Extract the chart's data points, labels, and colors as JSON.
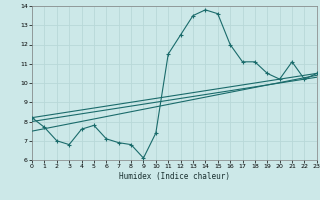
{
  "xlabel": "Humidex (Indice chaleur)",
  "background_color": "#cce8e8",
  "grid_color": "#b8d8d8",
  "line_color": "#1a6b6b",
  "xlim": [
    0,
    23
  ],
  "ylim": [
    6,
    14
  ],
  "xticks": [
    0,
    1,
    2,
    3,
    4,
    5,
    6,
    7,
    8,
    9,
    10,
    11,
    12,
    13,
    14,
    15,
    16,
    17,
    18,
    19,
    20,
    21,
    22,
    23
  ],
  "yticks": [
    6,
    7,
    8,
    9,
    10,
    11,
    12,
    13,
    14
  ],
  "series1_x": [
    0,
    1,
    2,
    3,
    4,
    5,
    6,
    7,
    8,
    9,
    10,
    11,
    12,
    13,
    14,
    15,
    16,
    17,
    18,
    19,
    20,
    21,
    22,
    23
  ],
  "series1_y": [
    8.2,
    7.7,
    7.0,
    6.8,
    7.6,
    7.8,
    7.1,
    6.9,
    6.8,
    6.1,
    7.4,
    11.5,
    12.5,
    13.5,
    13.8,
    13.6,
    12.0,
    11.1,
    11.1,
    10.5,
    10.2,
    11.1,
    10.2,
    10.5
  ],
  "series2_x": [
    0,
    23
  ],
  "series2_y": [
    8.2,
    10.5
  ],
  "series3_x": [
    0,
    23
  ],
  "series3_y": [
    7.5,
    10.4
  ],
  "series4_x": [
    0,
    23
  ],
  "series4_y": [
    8.0,
    10.3
  ]
}
